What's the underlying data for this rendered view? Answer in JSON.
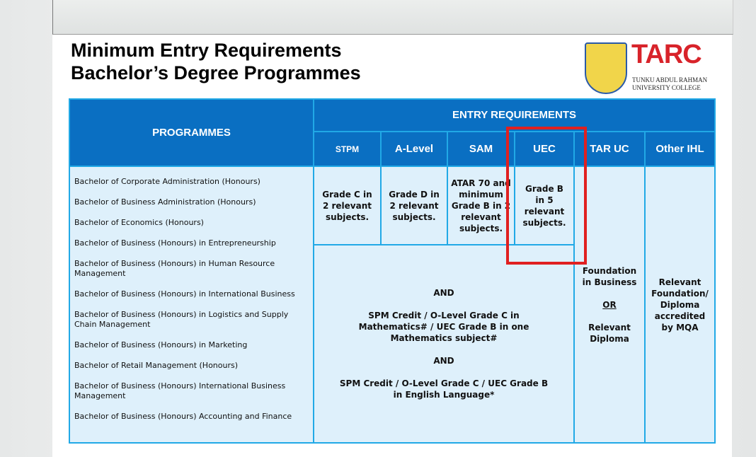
{
  "title": {
    "line1": "Minimum Entry Requirements",
    "line2": "Bachelor’s Degree Programmes"
  },
  "logo": {
    "name": "TARC",
    "line1": "TUNKU ABDUL RAHMAN",
    "line2": "UNIVERSITY COLLEGE"
  },
  "table": {
    "programmes_header": "PROGRAMMES",
    "entry_header": "ENTRY REQUIREMENTS",
    "columns": [
      "STPM",
      "A-Level",
      "SAM",
      "UEC",
      "TAR UC",
      "Other IHL"
    ],
    "programmes": [
      "Bachelor of Corporate Administration (Honours)",
      "Bachelor of Business Administration (Honours)",
      "Bachelor of Economics (Honours)",
      "Bachelor of Business (Honours) in Entrepreneurship",
      "Bachelor of Business (Honours) in Human Resource Management",
      "Bachelor of Business (Honours) in International Business",
      "Bachelor of Business (Honours) in Logistics and Supply Chain Management",
      "Bachelor of Business (Honours) in Marketing",
      "Bachelor of Retail Management (Honours)",
      "Bachelor of Business (Honours) International Business Management",
      "Bachelor of Business (Honours) Accounting and Finance"
    ],
    "stpm": "Grade C in 2 relevant subjects.",
    "alevel": "Grade D in 2 relevant subjects.",
    "sam": "ATAR 70 and minimum Grade B in 2 relevant subjects.",
    "uec": "Grade B in 5 relevant subjects.",
    "common": {
      "and1": "AND",
      "math": "SPM Credit / O-Level Grade C in Mathematics# / UEC Grade B in one Mathematics subject#",
      "and2": "AND",
      "english": "SPM Credit / O-Level Grade C / UEC Grade B in English Language*"
    },
    "taruc": {
      "line1": "Foundation in Business",
      "or": "OR",
      "line2": "Relevant Diploma"
    },
    "other_ihl": "Relevant Foundation/ Diploma accredited by MQA"
  },
  "colors": {
    "header": "#0a6fc2",
    "border": "#21a9e6",
    "cell": "#def0fb",
    "highlight": "#e02020",
    "brand": "#d8232a"
  }
}
